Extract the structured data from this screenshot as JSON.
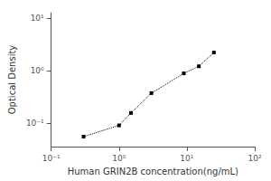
{
  "chart_data": {
    "type": "line",
    "xlabel": "Human GRIN2B concentration(ng/mL)",
    "ylabel": "Optical Density",
    "x": [
      0.3,
      1.0,
      1.5,
      3.0,
      9.0,
      15.0,
      25.0
    ],
    "values": [
      0.055,
      0.09,
      0.155,
      0.37,
      0.88,
      1.2,
      2.2
    ],
    "color": "#000000",
    "marker": "square",
    "line_style": "dotted",
    "log": true,
    "xlim": [
      0.1,
      100
    ],
    "xticks": [
      {
        "value": 0.1,
        "label": "10⁻¹"
      },
      {
        "value": 1,
        "label": "10⁰"
      },
      {
        "value": 10,
        "label": "10¹"
      },
      {
        "value": 100,
        "label": "10²"
      }
    ],
    "ylim": [
      0.03548133892335754,
      12.589254117941675
    ],
    "yticks": [
      {
        "value": 0.1,
        "label": "10⁻¹"
      },
      {
        "value": 1,
        "label": "10⁰"
      },
      {
        "value": 10,
        "label": "10¹"
      }
    ],
    "grid": false
  }
}
